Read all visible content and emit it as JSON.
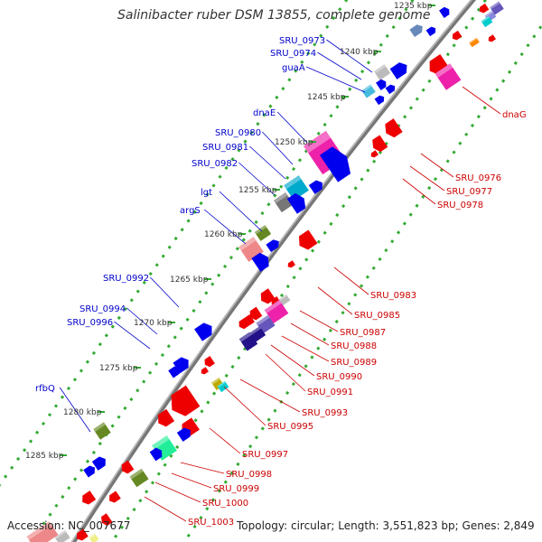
{
  "title": "Salinibacter ruber DSM 13855, complete genome",
  "footer": {
    "accession_label": "Accession:",
    "accession": "NC_007677",
    "topology_label": "Topology:",
    "topology": "circular",
    "length_label": "Length:",
    "length": "3,551,823 bp",
    "genes_label": "Genes:",
    "genes": "2,849"
  },
  "colors": {
    "forward": "#0000ee",
    "reverse": "#ee0000",
    "backbone": "#777777",
    "tick": "#33aa33",
    "label_forward": "#0000cc",
    "label_reverse": "#cc0000",
    "scale_text": "#333333"
  },
  "scale": {
    "unit": "kbp",
    "ticks": [
      1235,
      1240,
      1245,
      1250,
      1255,
      1260,
      1265,
      1270,
      1275,
      1280,
      1285
    ]
  },
  "forward_labels": [
    "SRU_0973",
    "SRU_0974",
    "guaA",
    "dnaE",
    "SRU_0980",
    "SRU_0981",
    "SRU_0982",
    "lgt",
    "argS",
    "SRU_0992",
    "SRU_0994",
    "SRU_0996",
    "rfbQ"
  ],
  "reverse_labels": [
    "dnaG",
    "SRU_0976",
    "SRU_0977",
    "SRU_0978",
    "SRU_0983",
    "SRU_0985",
    "SRU_0987",
    "SRU_0988",
    "SRU_0989",
    "SRU_0990",
    "SRU_0991",
    "SRU_0993",
    "SRU_0995",
    "SRU_0997",
    "SRU_0998",
    "SRU_0999",
    "SRU_1000",
    "SRU_1003"
  ]
}
